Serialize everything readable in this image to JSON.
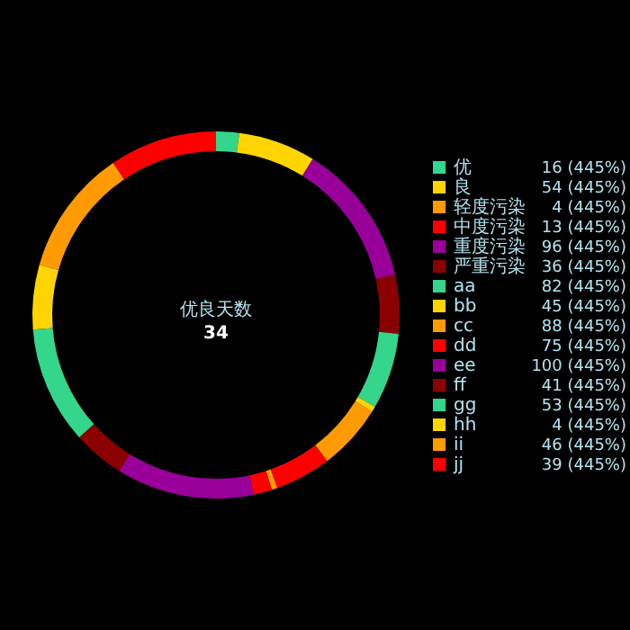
{
  "chart_data": {
    "type": "donut",
    "annotations": [
      "优良天数",
      "34"
    ],
    "legend": "right",
    "categories": [
      "优",
      "良",
      "轻度污染",
      "中度污染",
      "重度污染",
      "严重污染",
      "aa",
      "bb",
      "cc",
      "dd",
      "ee",
      "ff",
      "gg",
      "hh",
      "ii",
      "jj"
    ],
    "values": [
      16,
      54,
      4,
      13,
      96,
      36,
      82,
      45,
      88,
      75,
      100,
      41,
      53,
      4,
      46,
      39
    ],
    "value_labels": [
      "16 (445%)",
      "54 (445%)",
      "4 (445%)",
      "13 (445%)",
      "96 (445%)",
      "36 (445%)",
      "82 (445%)",
      "45 (445%)",
      "88 (445%)",
      "75 (445%)",
      "100 (445%)",
      "41 (445%)",
      "53 (445%)",
      "4 (445%)",
      "46 (445%)",
      "39 (445%)"
    ],
    "colors": [
      "#33d68a",
      "#ffd400",
      "#ff9a00",
      "#ff0000",
      "#990099",
      "#8b0000",
      "#33d68a",
      "#ffd400",
      "#ff9a00",
      "#ff0000",
      "#990099",
      "#8b0000",
      "#33d68a",
      "#ffd400",
      "#ff9a00",
      "#ff0000"
    ]
  }
}
